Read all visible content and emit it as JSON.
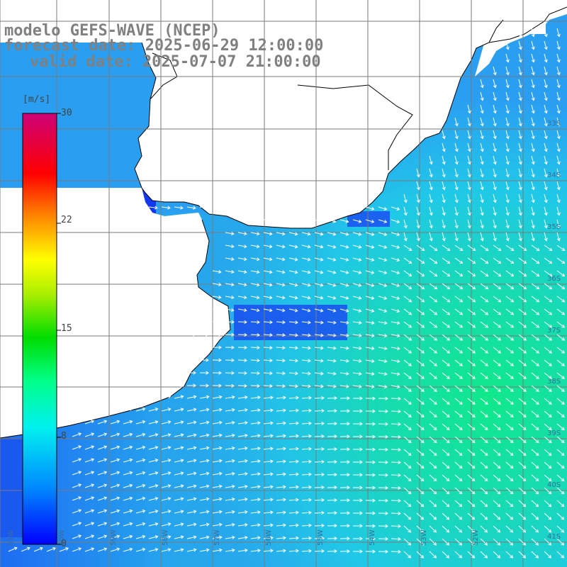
{
  "header": {
    "model_title": "modelo GEFS-WAVE (NCEP)",
    "forecast_date": "forecast date: 2025-06-29 12:00:00",
    "valid_date": "valid date: 2025-07-07 21:00:00"
  },
  "colorbar": {
    "unit": "[m/s]",
    "ticks": [
      "30",
      "22",
      "15",
      "8",
      "0"
    ],
    "tick_values": [
      30,
      22,
      15,
      8,
      0
    ],
    "range": [
      0,
      30
    ],
    "gradient_colors": [
      "#0000ff",
      "#0066ff",
      "#00ccff",
      "#00ffcc",
      "#00dd00",
      "#99ee00",
      "#ffff00",
      "#ff9900",
      "#ff0000",
      "#cc0077"
    ]
  },
  "grid": {
    "lat_labels": [
      "33S",
      "34S",
      "35S",
      "36S",
      "37S",
      "38S",
      "39S",
      "40S",
      "41S"
    ],
    "lon_labels": [
      "61W",
      "60W",
      "59W",
      "58W",
      "57W",
      "56W",
      "55W",
      "54W",
      "53W",
      "52W"
    ]
  },
  "colors": {
    "land": "#ffffff",
    "gridline": "#7a7a7a",
    "coastline": "#000000",
    "arrow": "#ffffff",
    "title_text": "#808080"
  }
}
